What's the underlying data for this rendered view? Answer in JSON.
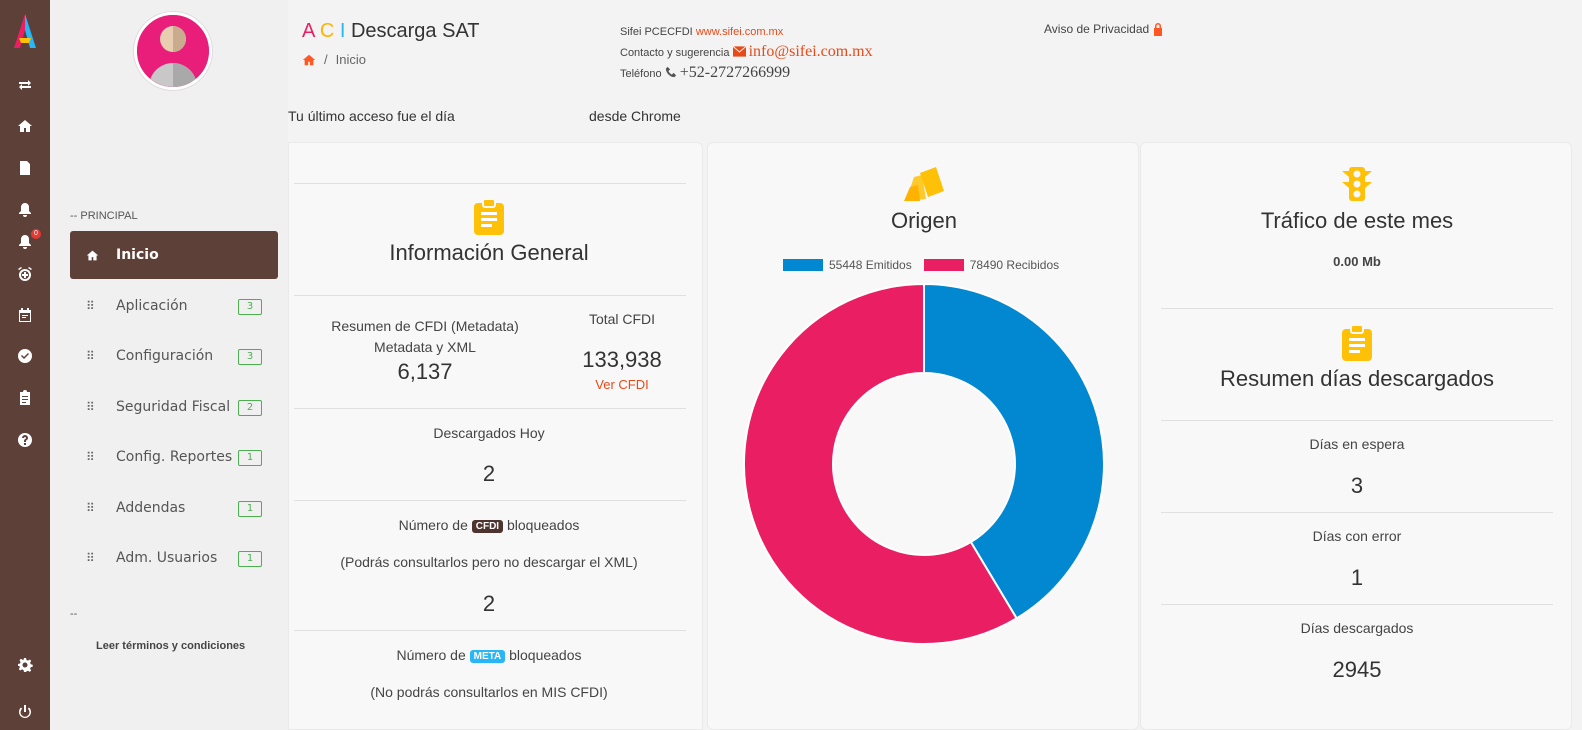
{
  "app": {
    "title_a": "A",
    "title_c": "C",
    "title_i": "I",
    "title_rest": "Descarga SAT"
  },
  "breadcrumb": {
    "separator": "/",
    "current": "Inicio"
  },
  "contact": {
    "company_label": "Sifei PCECFDI",
    "website": "www.sifei.com.mx",
    "contact_label": "Contacto y sugerencia",
    "email": "info@sifei.com.mx",
    "phone_label": "Teléfono",
    "phone": "+52-2727266999"
  },
  "privacy": "Aviso de Privacidad",
  "access": {
    "last_access": "Tu último acceso fue el día",
    "browser": "desde Chrome"
  },
  "sidebar": {
    "section": "-- PRINCIPAL",
    "items": [
      {
        "label": "Inicio",
        "count": ""
      },
      {
        "label": "Aplicación",
        "count": "3"
      },
      {
        "label": "Configuración",
        "count": "3"
      },
      {
        "label": "Seguridad Fiscal",
        "count": "2"
      },
      {
        "label": "Config. Reportes",
        "count": "1"
      },
      {
        "label": "Addendas",
        "count": "1"
      },
      {
        "label": "Adm. Usuarios",
        "count": "1"
      }
    ],
    "separator": "--",
    "terms": "Leer términos y condiciones",
    "notification_count": "0"
  },
  "info": {
    "title": "Información General",
    "summary_label": "Resumen de CFDI (Metadata)",
    "summary_sub": "Metadata y XML",
    "summary_value": "6,137",
    "total_label": "Total CFDI",
    "total_value": "133,938",
    "ver_cfdi": "Ver CFDI",
    "today_label": "Descargados Hoy",
    "today_value": "2",
    "blocked_prefix": "Número de",
    "blocked_tag": "CFDI",
    "blocked_suffix": "bloqueados",
    "blocked_note": "(Podrás consultarlos pero no descargar el XML)",
    "blocked_value": "2",
    "meta_prefix": "Número de",
    "meta_tag": "META",
    "meta_suffix": "bloqueados",
    "meta_note": "(No podrás consultarlos en MIS CFDI)"
  },
  "origen": {
    "title": "Origen"
  },
  "traffic": {
    "title": "Tráfico de este mes",
    "value": "0.00 Mb",
    "summary_title": "Resumen días descargados",
    "waiting_label": "Días en espera",
    "waiting_value": "3",
    "error_label": "Días con error",
    "error_value": "1",
    "downloaded_label": "Días descargados",
    "downloaded_value": "2945"
  },
  "chart_data": {
    "type": "pie",
    "title": "Origen",
    "categories": [
      "Emitidos",
      "Recibidos"
    ],
    "legend_labels": [
      "55448 Emitidos",
      "78490 Recibidos"
    ],
    "values": [
      55448,
      78490
    ],
    "colors": [
      "#0288d1",
      "#e91e63"
    ],
    "legend": "top"
  },
  "colors": {
    "brand": "#5d4037",
    "accent": "#ff5722",
    "badge": "#4caf50",
    "icon_yellow": "#ffc107"
  }
}
